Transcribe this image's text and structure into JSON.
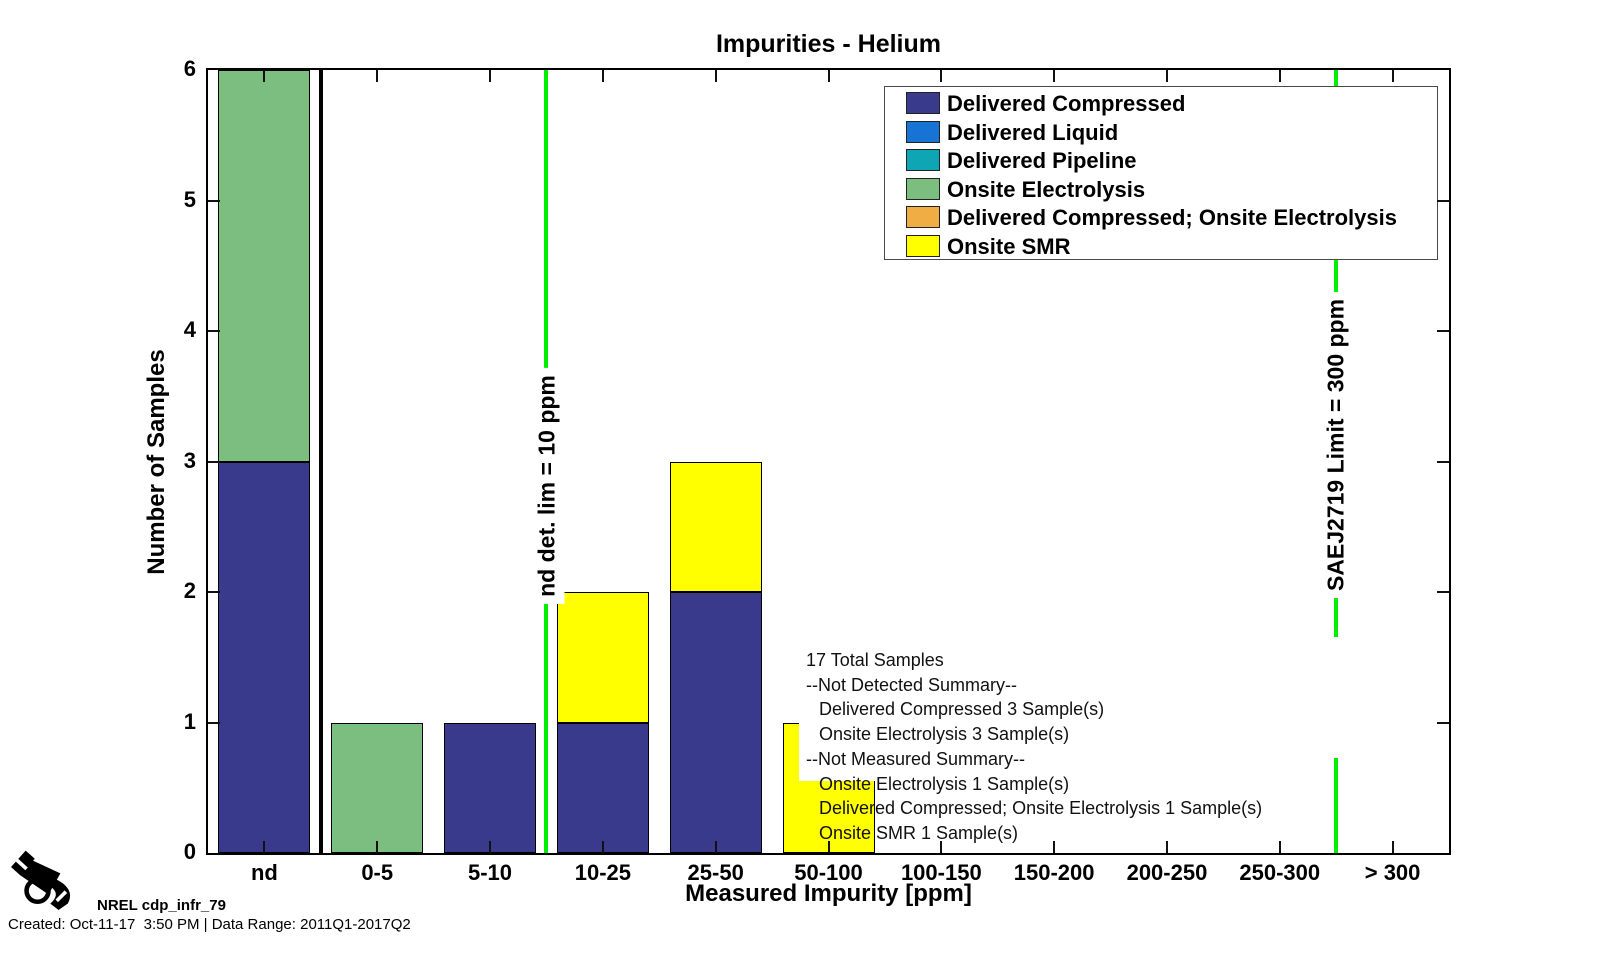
{
  "header": {
    "title": "Impurities - Helium"
  },
  "chart_data": {
    "type": "bar",
    "stacked": true,
    "title": "Impurities - Helium",
    "xlabel": "Measured Impurity [ppm]",
    "ylabel": "Number of Samples",
    "ylim": [
      0,
      6
    ],
    "yticks": [
      "0",
      "1",
      "2",
      "3",
      "4",
      "5",
      "6"
    ],
    "grid": false,
    "legend_position": "top-right-inside",
    "categories": [
      "nd",
      "0-5",
      "5-10",
      "10-25",
      "25-50",
      "50-100",
      "100-150",
      "150-200",
      "200-250",
      "250-300",
      "> 300"
    ],
    "series": [
      {
        "name": "Delivered Compressed",
        "color": "#3A3A8C",
        "values": [
          3,
          0,
          1,
          1,
          2,
          0,
          0,
          0,
          0,
          0,
          0
        ]
      },
      {
        "name": "Delivered Liquid",
        "color": "#1874D4",
        "values": [
          0,
          0,
          0,
          0,
          0,
          0,
          0,
          0,
          0,
          0,
          0
        ]
      },
      {
        "name": "Delivered Pipeline",
        "color": "#0EA5B5",
        "values": [
          0,
          0,
          0,
          0,
          0,
          0,
          0,
          0,
          0,
          0,
          0
        ]
      },
      {
        "name": "Onsite Electrolysis",
        "color": "#7CBE80",
        "values": [
          3,
          1,
          0,
          0,
          0,
          0,
          0,
          0,
          0,
          0,
          0
        ]
      },
      {
        "name": "Delivered Compressed; Onsite Electrolysis",
        "color": "#EFAD43",
        "values": [
          0,
          0,
          0,
          0,
          0,
          0,
          0,
          0,
          0,
          0,
          0
        ]
      },
      {
        "name": "Onsite SMR",
        "color": "#FFFF00",
        "values": [
          0,
          0,
          0,
          1,
          1,
          1,
          0,
          0,
          0,
          0,
          0
        ]
      }
    ],
    "reference_lines": [
      {
        "label": "",
        "type": "separator",
        "color": "#000000",
        "x_boundary": 1
      },
      {
        "label": "nd det. lim = 10 ppm",
        "type": "limit",
        "color": "#00EE00",
        "x_boundary": 3
      },
      {
        "label": "SAEJ2719 Limit = 300 ppm",
        "type": "limit",
        "color": "#00EE00",
        "x_boundary": 10
      }
    ],
    "annotation": {
      "lines": [
        {
          "text": "17 Total Samples",
          "indent": false
        },
        {
          "text": "--Not Detected Summary--",
          "indent": false
        },
        {
          "text": "Delivered Compressed 3 Sample(s)",
          "indent": true
        },
        {
          "text": "Onsite Electrolysis 3 Sample(s)",
          "indent": true
        },
        {
          "text": "--Not Measured Summary--",
          "indent": false
        },
        {
          "text": "Onsite Electrolysis 1 Sample(s)",
          "indent": true
        },
        {
          "text": "Delivered Compressed; Onsite Electrolysis 1 Sample(s)",
          "indent": true
        },
        {
          "text": "Onsite SMR 1 Sample(s)",
          "indent": true
        }
      ]
    }
  },
  "footer": {
    "logo_label": "NREL cdp_infr_79",
    "created_line": "Created: Oct-11-17  3:50 PM | Data Range: 2011Q1-2017Q2",
    "pump_icon": "fuel-pump-nozzle-icon"
  }
}
